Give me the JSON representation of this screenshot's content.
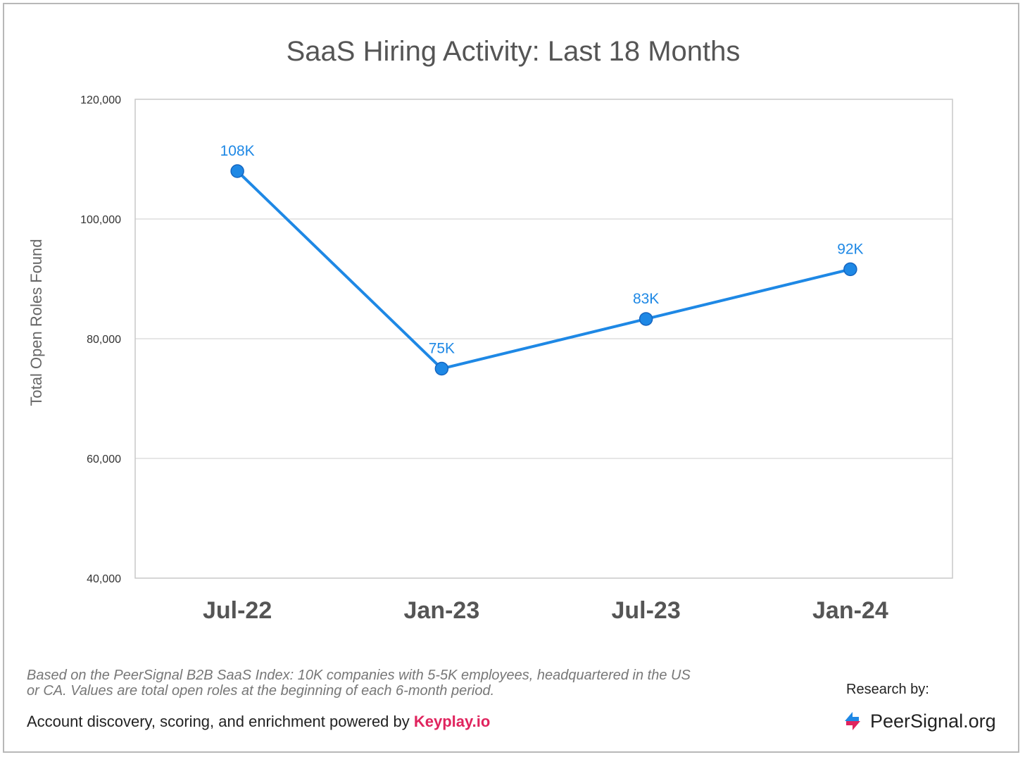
{
  "chart_data": {
    "type": "line",
    "title": "SaaS Hiring Activity: Last 18 Months",
    "ylabel": "Total Open Roles Found",
    "xlabel": "",
    "ylim": [
      40000,
      120000
    ],
    "yticks": [
      40000,
      60000,
      80000,
      100000,
      120000
    ],
    "ytick_labels": [
      "40,000",
      "60,000",
      "80,000",
      "100,000",
      "120,000"
    ],
    "categories": [
      "Jul-22",
      "Jan-23",
      "Jul-23",
      "Jan-24"
    ],
    "series": [
      {
        "values": [
          108000,
          75000,
          83300,
          91600
        ],
        "data_labels": [
          "108K",
          "75K",
          "83K",
          "92K"
        ],
        "color": "#1e88e5"
      }
    ],
    "grid": true,
    "legend": "none"
  },
  "footer": {
    "note": "Based on the PeerSignal B2B SaaS Index: 10K companies with 5-5K employees, headquartered in the US or CA. Values are total open roles at the beginning of each 6-month period.",
    "credit_prefix": "Account discovery, scoring, and enrichment powered by ",
    "credit_brand": "Keyplay.io",
    "credit_brand_color": "#e0245e",
    "research_label": "Research by:",
    "logo_name": "PeerSignal.org",
    "logo_icon": "peersignal-arrows-icon"
  }
}
